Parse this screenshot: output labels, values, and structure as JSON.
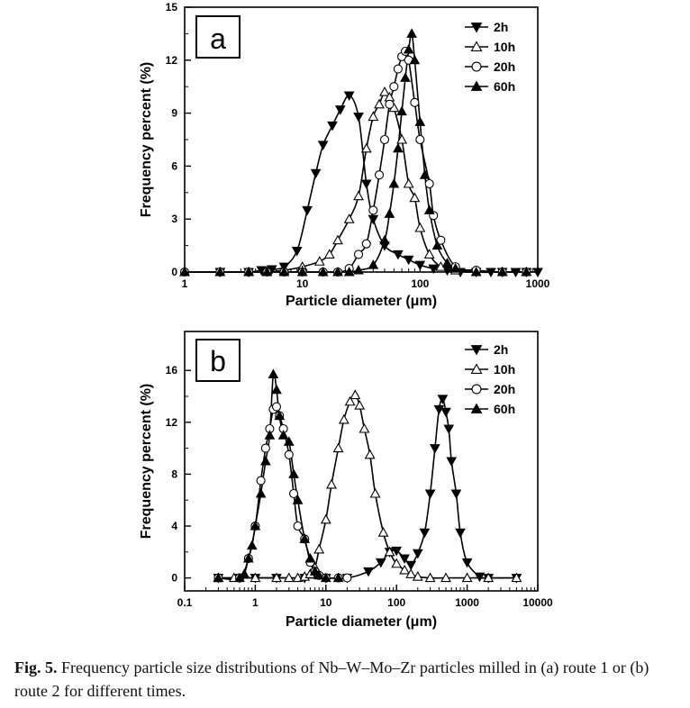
{
  "figure": {
    "caption_label": "Fig. 5.",
    "caption_text": "Frequency particle size distributions of Nb–W–Mo–Zr particles milled in (a) route 1 or (b) route 2 for different times."
  },
  "chart_data": [
    {
      "type": "line",
      "panel_label": "a",
      "title": "",
      "xlabel": "Particle diameter (μm)",
      "ylabel": "Frequency percent (%)",
      "xscale": "log",
      "xlim": [
        1,
        1000
      ],
      "ylim": [
        0,
        15
      ],
      "xticks": [
        1,
        10,
        100,
        1000
      ],
      "xtick_labels": [
        "1",
        "10",
        "100",
        "1000"
      ],
      "yticks": [
        0,
        3,
        6,
        9,
        12,
        15
      ],
      "ytick_labels": [
        "0",
        "3",
        "6",
        "9",
        "12",
        "15"
      ],
      "grid": false,
      "legend_position": "top-right",
      "series": [
        {
          "name": "2h",
          "marker": "triangle-down",
          "x": [
            2,
            3.5,
            4.5,
            5.5,
            7,
            9,
            11,
            13,
            15,
            18,
            21,
            25,
            30,
            35,
            40,
            50,
            65,
            80,
            100,
            130,
            170,
            220,
            300,
            400,
            500,
            650,
            800,
            1000
          ],
          "y": [
            0,
            0,
            0.1,
            0.15,
            0.3,
            1.2,
            3.5,
            5.6,
            7.2,
            8.3,
            9.2,
            10,
            8.8,
            5,
            3,
            1.5,
            1,
            0.7,
            0.4,
            0.2,
            0.1,
            0,
            0,
            0,
            0,
            0,
            0,
            0
          ]
        },
        {
          "name": "10h",
          "marker": "triangle-up",
          "x": [
            1,
            2,
            3.5,
            5,
            7,
            10,
            14,
            17,
            20,
            25,
            30,
            35,
            40,
            45,
            50,
            55,
            60,
            70,
            80,
            90,
            100,
            120,
            150,
            200,
            300,
            500,
            800
          ],
          "y": [
            0,
            0,
            0,
            0,
            0.1,
            0.3,
            0.6,
            1,
            1.8,
            3,
            4.3,
            7,
            8.8,
            9.5,
            10.2,
            9.9,
            9.3,
            7.5,
            5,
            4.2,
            2.5,
            1,
            0.3,
            0.1,
            0,
            0,
            0
          ]
        },
        {
          "name": "20h",
          "marker": "circle",
          "x": [
            1,
            2,
            3.5,
            5,
            7,
            10,
            15,
            20,
            25,
            30,
            35,
            40,
            45,
            50,
            55,
            60,
            65,
            70,
            75,
            80,
            90,
            100,
            120,
            130,
            150,
            200,
            300,
            500,
            800
          ],
          "y": [
            0,
            0,
            0,
            0,
            0,
            0,
            0,
            0,
            0.2,
            1,
            1.6,
            3.5,
            5.5,
            7.5,
            9.5,
            10.5,
            11.5,
            12.2,
            12.5,
            12,
            9.6,
            7.5,
            5,
            3.2,
            1.8,
            0.3,
            0.1,
            0,
            0
          ]
        },
        {
          "name": "60h",
          "marker": "triangle-up-filled",
          "x": [
            1,
            2,
            3.5,
            5,
            7,
            10,
            15,
            20,
            25,
            30,
            40,
            50,
            55,
            60,
            65,
            70,
            75,
            80,
            85,
            90,
            100,
            110,
            120,
            140,
            170,
            200,
            300,
            500,
            800
          ],
          "y": [
            0,
            0,
            0,
            0,
            0,
            0,
            0,
            0,
            0,
            0.1,
            0.4,
            1.8,
            3.3,
            5,
            7,
            9.1,
            11,
            12.6,
            13.5,
            12,
            8.5,
            5.5,
            3.5,
            1.5,
            0.5,
            0.2,
            0,
            0,
            0
          ]
        }
      ]
    },
    {
      "type": "line",
      "panel_label": "b",
      "title": "",
      "xlabel": "Particle diameter (μm)",
      "ylabel": "Frequency percent (%)",
      "xscale": "log",
      "xlim": [
        0.1,
        10000
      ],
      "ylim": [
        -1,
        19
      ],
      "xticks": [
        0.1,
        1,
        10,
        100,
        1000,
        10000
      ],
      "xtick_labels": [
        "0.1",
        "1",
        "10",
        "100",
        "1000",
        "10000"
      ],
      "yticks": [
        0,
        4,
        8,
        12,
        16
      ],
      "ytick_labels": [
        "0",
        "4",
        "8",
        "12",
        "16"
      ],
      "grid": false,
      "legend_position": "top-right",
      "series": [
        {
          "name": "2h",
          "marker": "triangle-down",
          "x": [
            0.3,
            0.6,
            1,
            2,
            5,
            10,
            20,
            40,
            60,
            80,
            100,
            130,
            160,
            200,
            250,
            300,
            350,
            400,
            450,
            500,
            550,
            600,
            700,
            800,
            1000,
            1500,
            2000,
            5000
          ],
          "y": [
            0,
            0,
            0,
            0,
            0,
            0,
            0,
            0.5,
            1.2,
            2,
            2.1,
            1.5,
            1,
            1.9,
            3.5,
            6.5,
            10,
            13,
            13.8,
            12.8,
            11.5,
            9,
            6.5,
            3.5,
            1.2,
            0.1,
            0,
            0
          ]
        },
        {
          "name": "10h",
          "marker": "triangle-up",
          "x": [
            0.3,
            0.5,
            1,
            2,
            3,
            4,
            5,
            6,
            7,
            8,
            10,
            12,
            15,
            18,
            22,
            26,
            30,
            35,
            42,
            50,
            65,
            80,
            100,
            130,
            160,
            200,
            300,
            500,
            1000,
            2000,
            5000
          ],
          "y": [
            0,
            0,
            0,
            0,
            0,
            0,
            0.1,
            0.3,
            0.8,
            2.2,
            4.5,
            7.2,
            10,
            12.2,
            13.6,
            14.1,
            13.3,
            11.5,
            9.5,
            6.5,
            3.5,
            2,
            1.1,
            0.6,
            0.3,
            0.1,
            0,
            0,
            0,
            0,
            0
          ]
        },
        {
          "name": "20h",
          "marker": "circle",
          "x": [
            0.3,
            0.6,
            0.8,
            1,
            1.2,
            1.4,
            1.6,
            1.8,
            2,
            2.2,
            2.5,
            3,
            3.5,
            4,
            5,
            6,
            7,
            8,
            10,
            15,
            20
          ],
          "y": [
            0,
            0,
            1.5,
            4,
            7.5,
            10,
            11.5,
            13,
            13.2,
            12.5,
            11.5,
            9.5,
            6.5,
            4,
            3,
            1.2,
            0.5,
            0.2,
            0,
            0,
            0
          ]
        },
        {
          "name": "60h",
          "marker": "triangle-up-filled",
          "x": [
            0.3,
            0.6,
            0.7,
            0.8,
            0.9,
            1,
            1.2,
            1.4,
            1.6,
            1.8,
            2,
            2.2,
            2.5,
            3,
            3.5,
            4,
            5,
            6,
            7,
            8,
            10,
            15
          ],
          "y": [
            0,
            0,
            0.3,
            1.5,
            2.5,
            4,
            6.5,
            9,
            11,
            15.7,
            14.5,
            12.5,
            11,
            10.5,
            8,
            6,
            3,
            1.5,
            0.5,
            0.2,
            0,
            0
          ]
        }
      ]
    }
  ]
}
